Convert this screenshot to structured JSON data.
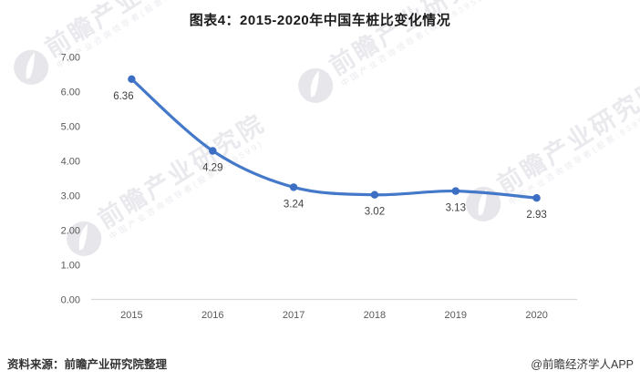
{
  "title": "图表4：2015-2020年中国车桩比变化情况",
  "source_note": "资料来源：前瞻产业研究院整理",
  "credit": "@前瞻经济学人APP",
  "watermark": {
    "brand": "前瞻产业研究院",
    "subtext": "中国产业咨询领导者(股票:839599)"
  },
  "colors": {
    "line": "#4478C9",
    "marker": "#3C6FC4",
    "axis_line": "#D9D9D9",
    "tick_text": "#595959",
    "data_label_text": "#3F3F3F",
    "title_text": "#1A1A1A",
    "watermark_gray": "#E9E9EE"
  },
  "chart_data": {
    "type": "line",
    "title": "图表4：2015-2020年中国车桩比变化情况",
    "categories": [
      "2015",
      "2016",
      "2017",
      "2018",
      "2019",
      "2020"
    ],
    "values": [
      6.36,
      4.29,
      3.24,
      3.02,
      3.13,
      2.93
    ],
    "data_labels": [
      "6.36",
      "4.29",
      "3.24",
      "3.02",
      "3.13",
      "2.93"
    ],
    "xlabel": "",
    "ylabel": "",
    "ylim": [
      0,
      7
    ],
    "y_tick_step": 1,
    "y_tick_labels": [
      "0.00",
      "1.00",
      "2.00",
      "3.00",
      "4.00",
      "5.00",
      "6.00",
      "7.00"
    ],
    "grid": false,
    "legend": "none",
    "smooth": true
  }
}
